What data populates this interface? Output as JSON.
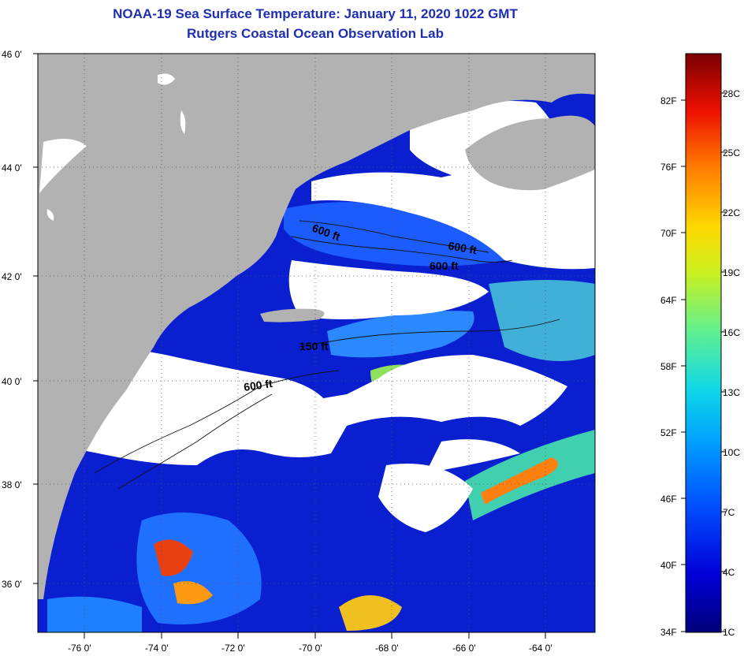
{
  "title": "NOAA-19 Sea Surface Temperature:  January 11, 2020 1022 GMT",
  "subtitle": "Rutgers Coastal Ocean Observation Lab",
  "lat_labels": [
    "46 0'",
    "44 0'",
    "42 0'",
    "40 0'",
    "38 0'",
    "36 0'"
  ],
  "lon_labels": [
    "-76 0'",
    "-74 0'",
    "-72 0'",
    "-70 0'",
    "-68 0'",
    "-66 0'",
    "-64 0'"
  ],
  "contour_labels": [
    "600 ft",
    "600 ft",
    "600 ft",
    "150 ft",
    "600 ft"
  ],
  "colorbar": {
    "fahrenheit": [
      "82F",
      "76F",
      "70F",
      "64F",
      "58F",
      "52F",
      "46F",
      "40F",
      "34F"
    ],
    "celsius": [
      "28C",
      "25C",
      "22C",
      "19C",
      "16C",
      "13C",
      "10C",
      "7C",
      "4C",
      "1C"
    ]
  },
  "colors": {
    "land": "#b2b2b2",
    "cloud": "#ffffff",
    "title": "#1f2fb0"
  }
}
